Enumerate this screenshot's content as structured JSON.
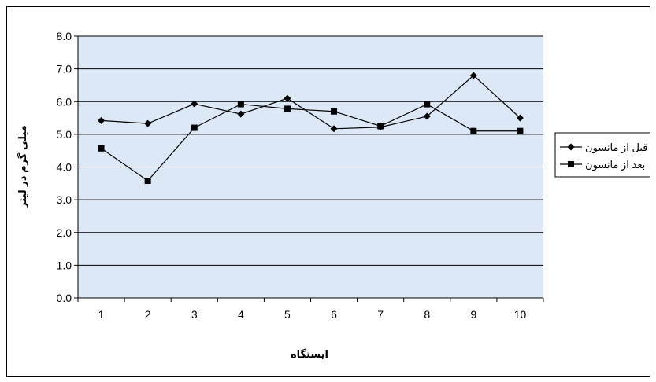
{
  "chart_data": {
    "type": "line",
    "title": "",
    "xlabel": "ایستگاه",
    "ylabel": "میلی گرم در لیتر",
    "categories": [
      "1",
      "2",
      "3",
      "4",
      "5",
      "6",
      "7",
      "8",
      "9",
      "10"
    ],
    "ylim": [
      0,
      8
    ],
    "yticks": [
      "0.0",
      "1.0",
      "2.0",
      "3.0",
      "4.0",
      "5.0",
      "6.0",
      "7.0",
      "8.0"
    ],
    "grid": true,
    "legend_position": "right",
    "plot_background": "#dde8f6",
    "series": [
      {
        "name": "قبل از مانسون",
        "marker": "diamond",
        "color": "#000000",
        "values": [
          5.42,
          5.33,
          5.93,
          5.62,
          6.1,
          5.17,
          5.22,
          5.55,
          6.8,
          5.5
        ]
      },
      {
        "name": "بعد از مانسون",
        "marker": "square",
        "color": "#000000",
        "values": [
          4.57,
          3.58,
          5.2,
          5.92,
          5.78,
          5.7,
          5.25,
          5.92,
          5.1,
          5.1
        ]
      }
    ]
  }
}
